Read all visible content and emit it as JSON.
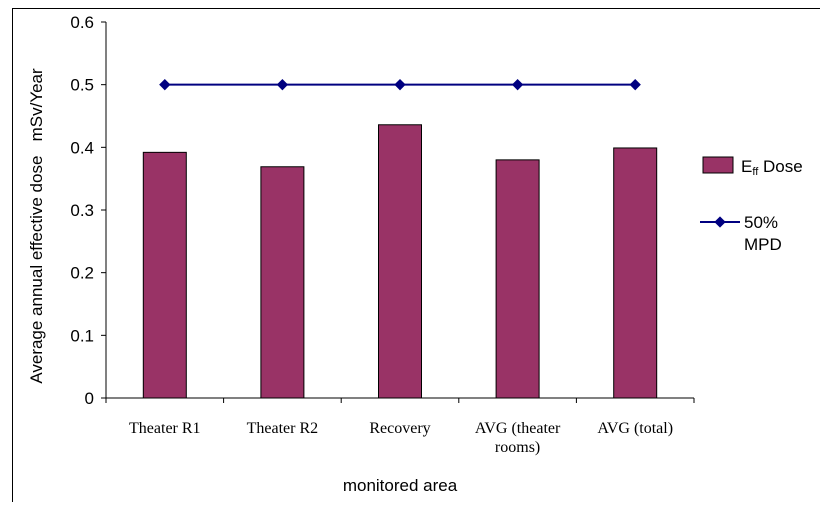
{
  "chart_data": {
    "type": "bar",
    "categories": [
      "Theater R1",
      "Theater R2",
      "Recovery",
      "AVG (theater rooms)",
      "AVG (total)"
    ],
    "category_lines": [
      [
        "Theater R1"
      ],
      [
        "Theater R2"
      ],
      [
        "Recovery"
      ],
      [
        "AVG (theater",
        "rooms)"
      ],
      [
        "AVG (total)"
      ]
    ],
    "series": [
      {
        "name": "Eff Dose",
        "name_main": "E",
        "name_sub": "ff",
        "name_rest": "Dose",
        "type": "bar",
        "values": [
          0.392,
          0.369,
          0.436,
          0.38,
          0.399
        ],
        "color": "#993366"
      },
      {
        "name": "50% MPD",
        "name_lines": [
          "50%",
          "MPD"
        ],
        "type": "line",
        "values": [
          0.5,
          0.5,
          0.5,
          0.5,
          0.5
        ],
        "color": "#000080"
      }
    ],
    "xlabel": "monitored area",
    "ylabel": "Average annual effective dose   mSv/Year",
    "ylim": [
      0,
      0.6
    ],
    "yticks": [
      "0",
      "0.1",
      "0.2",
      "0.3",
      "0.4",
      "0.5",
      "0.6"
    ],
    "grid": false,
    "legend_position": "right"
  }
}
